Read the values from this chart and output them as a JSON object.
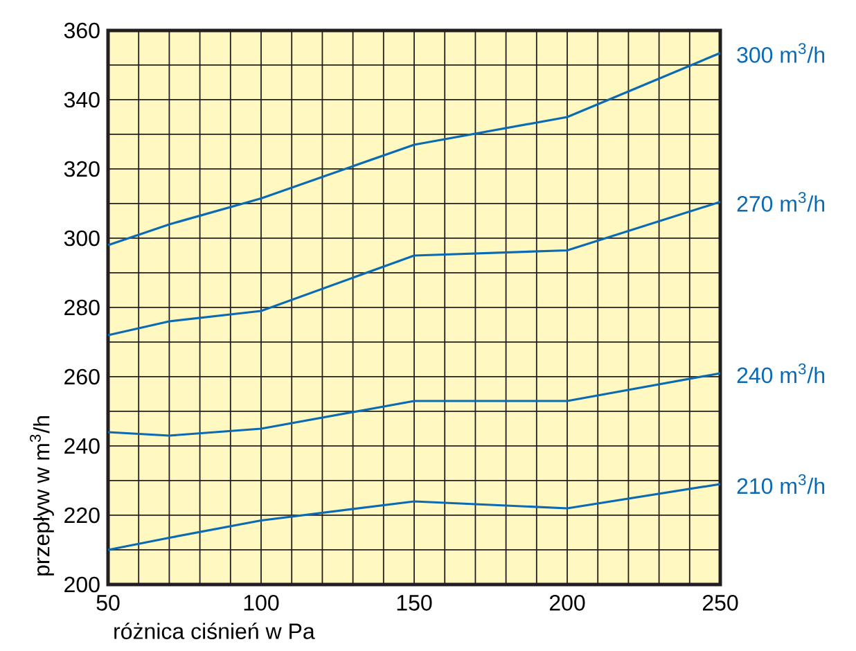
{
  "chart_data": {
    "type": "line",
    "xlabel": "różnica ciśnień w Pa",
    "ylabel": "przepływ w m$^{3}$/h",
    "series": [
      {
        "name": "300 m$^{3}$/h",
        "color": "#0a6ab4",
        "x": [
          50,
          70,
          100,
          150,
          200,
          250
        ],
        "values": [
          298,
          304,
          311.5,
          327,
          335,
          353.5
        ]
      },
      {
        "name": "270 m$^{3}$/h",
        "color": "#0a6ab4",
        "x": [
          50,
          70,
          100,
          150,
          200,
          250
        ],
        "values": [
          272,
          276,
          279,
          295,
          296.5,
          310.5
        ]
      },
      {
        "name": "240 m$^{3}$/h",
        "color": "#0a6ab4",
        "x": [
          50,
          70,
          100,
          150,
          200,
          250
        ],
        "values": [
          244,
          243,
          245,
          253,
          253,
          261
        ]
      },
      {
        "name": "210 m$^{3}$/h",
        "color": "#0a6ab4",
        "x": [
          50,
          70,
          100,
          150,
          200,
          250
        ],
        "values": [
          210,
          213.5,
          218.5,
          224,
          222,
          229
        ]
      }
    ],
    "xlim": [
      50,
      250
    ],
    "ylim": [
      200,
      360
    ],
    "xticks": [
      50,
      {
        "value": 60,
        "label": null
      },
      {
        "value": 70,
        "label": null
      },
      {
        "value": 80,
        "label": null
      },
      {
        "value": 90,
        "label": null
      },
      100,
      {
        "value": 110,
        "label": null
      },
      {
        "value": 120,
        "label": null
      },
      {
        "value": 130,
        "label": null
      },
      {
        "value": 140,
        "label": null
      },
      150,
      {
        "value": 160,
        "label": null
      },
      {
        "value": 170,
        "label": null
      },
      {
        "value": 180,
        "label": null
      },
      {
        "value": 190,
        "label": null
      },
      200,
      {
        "value": 210,
        "label": null
      },
      {
        "value": 220,
        "label": null
      },
      {
        "value": 230,
        "label": null
      },
      {
        "value": 240,
        "label": null
      },
      250
    ],
    "yticks": [
      200,
      {
        "value": 210,
        "label": null
      },
      220,
      {
        "value": 230,
        "label": null
      },
      240,
      {
        "value": 250,
        "label": null
      },
      260,
      {
        "value": 270,
        "label": null
      },
      280,
      {
        "value": 290,
        "label": null
      },
      300,
      {
        "value": 310,
        "label": null
      },
      320,
      {
        "value": 330,
        "label": null
      },
      340,
      {
        "value": 350,
        "label": null
      },
      360
    ],
    "grid": true,
    "marker": "none",
    "line_style": "solid",
    "legend": false
  }
}
